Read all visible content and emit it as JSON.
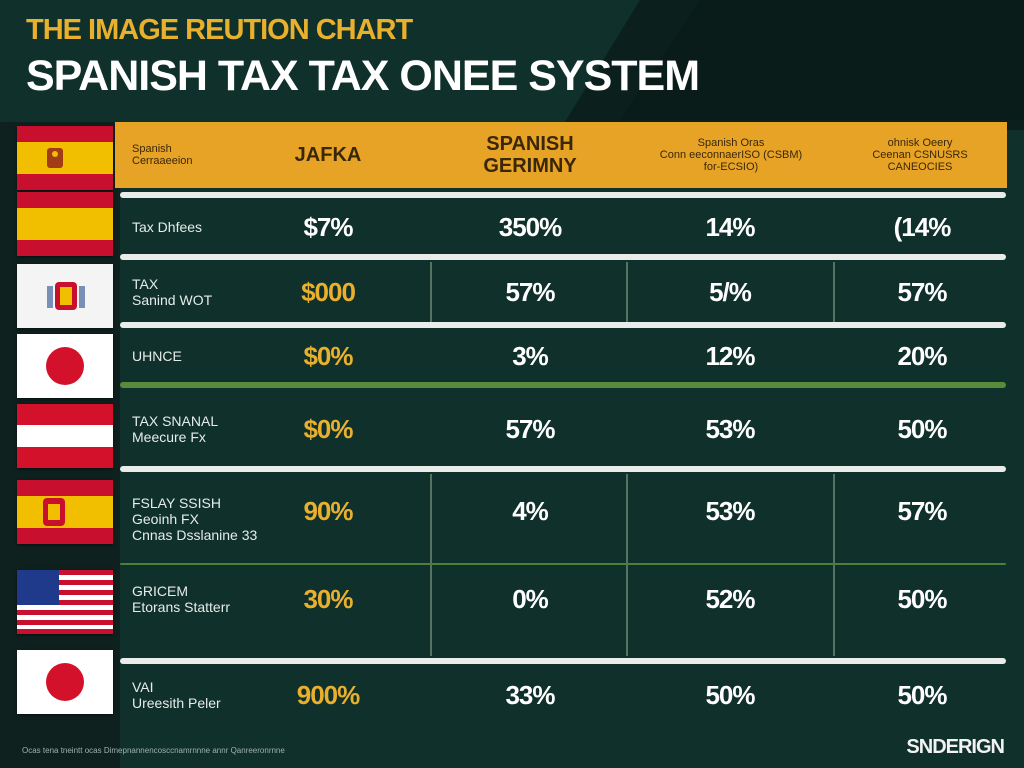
{
  "colors": {
    "accent": "#e7a326",
    "gold_text": "#e8b02c",
    "white_text": "#ffffff",
    "divider_light": "#e9ece8",
    "divider_green": "#5a8a3c"
  },
  "header": {
    "kicker": "THE IMAGE REUTION CHART",
    "title": "SPANISH TAX TAX ONEE SYSTEM"
  },
  "table": {
    "columns": [
      {
        "lines": [
          "Spanish",
          "Cerraaeeion"
        ]
      },
      {
        "lines": [
          "JAFKA"
        ]
      },
      {
        "lines": [
          "SPANISH",
          "GERIMNY"
        ]
      },
      {
        "lines": [
          "Spanish Oras",
          "Conn eeconnaerISO (CSBM)",
          "for-ECSIO)"
        ]
      },
      {
        "lines": [
          "ohnisk Oeery",
          "Ceenan CSNUSRS",
          "CANEOCIES"
        ]
      }
    ],
    "rows": [
      {
        "label": [
          "Tax Dhfees"
        ],
        "flag": "spain-crest-icon",
        "values": [
          "$7%",
          "350%",
          "14%",
          "(14%"
        ]
      },
      {
        "label": [
          "TAX",
          "Sanind WOT"
        ],
        "flag": "spain-flag-icon",
        "values": [
          "$000",
          "57%",
          "5/%",
          "57%"
        ]
      },
      {
        "label": [
          "UHNCE"
        ],
        "flag": "spain-crest-flag-icon",
        "values": [
          "$0%",
          "3%",
          "12%",
          "20%"
        ]
      },
      {
        "label": [
          "TAX SNANAL",
          "Meecure Fx"
        ],
        "flag": "japan-flag-icon",
        "values": [
          "$0%",
          "57%",
          "53%",
          "50%"
        ]
      },
      {
        "label": [
          "FSLAY SSISH",
          "Geoinh FX",
          "Cnnas Dsslanine 33"
        ],
        "flag": "austria-flag-icon",
        "values": [
          "90%",
          "4%",
          "53%",
          "57%"
        ]
      },
      {
        "label": [
          "GRICEM",
          "Etorans Statterr"
        ],
        "flag": "spain-coat-flag-icon",
        "values": [
          "30%",
          "0%",
          "52%",
          "50%"
        ]
      },
      {
        "label": [
          "VAI",
          "Ureesith Peler"
        ],
        "flag": "usa-flag-icon",
        "values": [
          "900%",
          "33%",
          "50%",
          "50%"
        ]
      }
    ],
    "extra_flag": "japan-flag-icon"
  },
  "footer": {
    "footnote": "Ocas tena tneintt ocas Dimepnannencosccnamrnnne annr Qanreeronrnne",
    "brand": "SNDERIGN"
  }
}
